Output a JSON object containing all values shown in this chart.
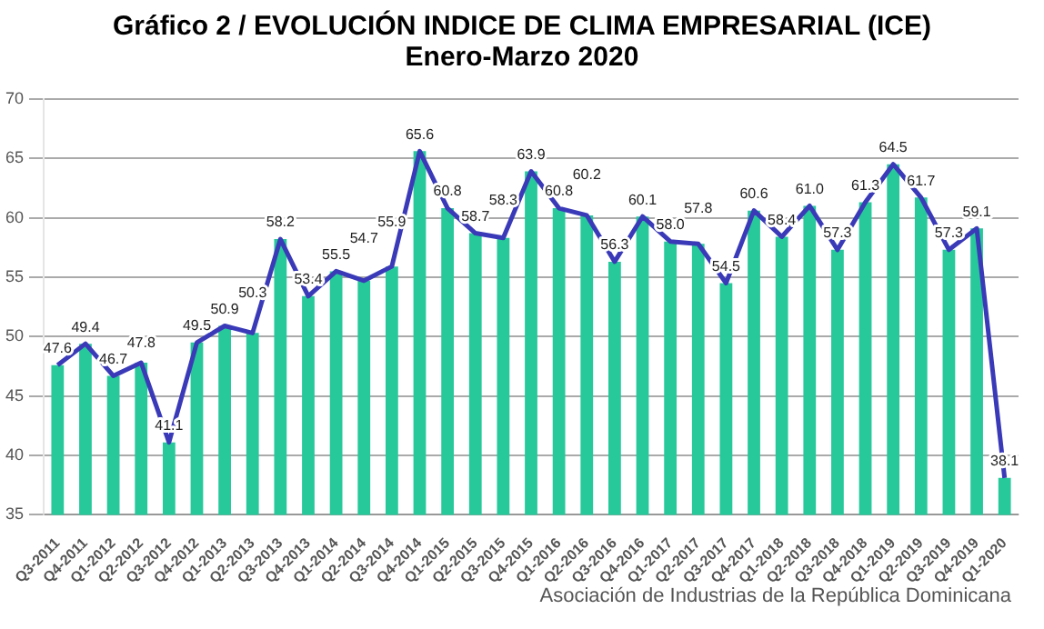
{
  "chart_data": {
    "type": "bar",
    "title": "Gráfico 2 / EVOLUCIÓN INDICE DE CLIMA EMPRESARIAL (ICE)",
    "subtitle": "Enero-Marzo 2020",
    "categories": [
      "Q3-2011",
      "Q4-2011",
      "Q1-2012",
      "Q2-2012",
      "Q3-2012",
      "Q4-2012",
      "Q1-2013",
      "Q2-2013",
      "Q3-2013",
      "Q4-2013",
      "Q1-2014",
      "Q2-2014",
      "Q3-2014",
      "Q4-2014",
      "Q1-2015",
      "Q2-2015",
      "Q3-2015",
      "Q4-2015",
      "Q1-2016",
      "Q2-2016",
      "Q3-2016",
      "Q4-2016",
      "Q1-2017",
      "Q2-2017",
      "Q3-2017",
      "Q4-2017",
      "Q1-2018",
      "Q2-2018",
      "Q3-2018",
      "Q4-2018",
      "Q1-2019",
      "Q2-2019",
      "Q3-2019",
      "Q4-2019",
      "Q1-2020"
    ],
    "series": [
      {
        "color": "#27c99b",
        "values": [
          47.6,
          49.4,
          46.7,
          47.8,
          41.1,
          49.5,
          50.9,
          50.3,
          58.2,
          53.4,
          55.5,
          54.7,
          55.9,
          65.6,
          60.8,
          58.7,
          58.3,
          63.9,
          60.8,
          60.2,
          56.3,
          60.1,
          58.0,
          57.8,
          54.5,
          60.6,
          58.4,
          61.0,
          57.3,
          61.3,
          64.5,
          61.7,
          57.3,
          59.1,
          38.1
        ]
      },
      {
        "type": "line",
        "color": "#3a3ab8",
        "marker": "none",
        "values": [
          47.6,
          49.4,
          46.7,
          47.8,
          41.1,
          49.5,
          50.9,
          50.3,
          58.2,
          53.4,
          55.5,
          54.7,
          55.9,
          65.6,
          60.8,
          58.7,
          58.3,
          63.9,
          60.8,
          60.2,
          56.3,
          60.1,
          58.0,
          57.8,
          54.5,
          60.6,
          58.4,
          61.0,
          57.3,
          61.3,
          64.5,
          61.7,
          57.3,
          59.1,
          38.1
        ],
        "value_labels": [
          "47.6",
          "49.4",
          "46.7",
          "47.8",
          "41.1",
          "49.5",
          "50.9",
          "50.3",
          "58.2",
          "53.4",
          "55.5",
          "54.7",
          "55.9",
          "65.6",
          "60.8",
          "58.7",
          "58.3",
          "63.9",
          "60.8",
          "60.2",
          "56.3",
          "60.1",
          "58.0",
          "57.8",
          "54.5",
          "60.6",
          "58.4",
          "61.0",
          "57.3",
          "61.3",
          "64.5",
          "61.7",
          "57.3",
          "59.1",
          "38.1"
        ]
      }
    ],
    "ylim": [
      35,
      70
    ],
    "yticks": [
      35,
      40,
      45,
      50,
      55,
      60,
      65,
      70
    ],
    "grid": "y",
    "legend": false,
    "annotations": [
      "Asociación de Industrias de la República Dominicana"
    ]
  }
}
